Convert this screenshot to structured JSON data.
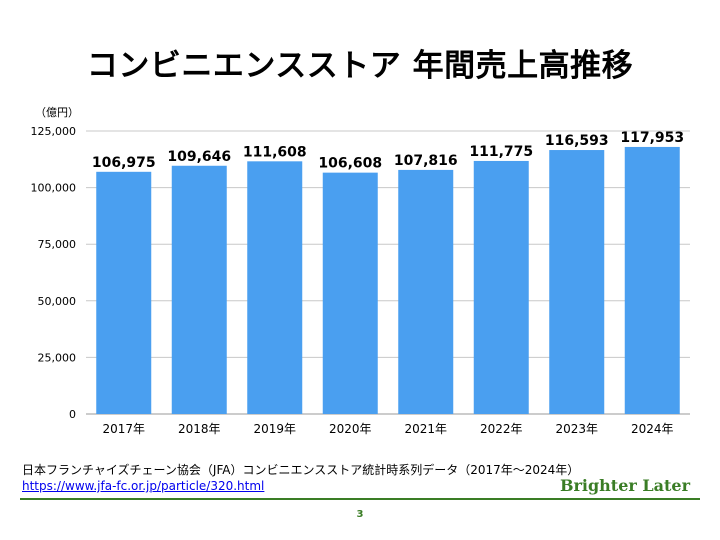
{
  "slide": {
    "title": "コンビニエンスストア 年間売上高推移",
    "source_text": "日本フランチャイズチェーン協会（JFA）コンビニエンスストア統計時系列データ（2017年〜2024年）",
    "source_url": "https://www.jfa-fc.or.jp/particle/320.html",
    "brand": "Brighter Later",
    "page_number": "3"
  },
  "colors": {
    "bar": "#4a9ff0",
    "accent": "#3a7d25",
    "link": "#0000ee",
    "grid": "#c8c8c8"
  },
  "chart_data": {
    "type": "bar",
    "title": "",
    "ylabel": "（億円）",
    "xlabel": "",
    "ylim": [
      0,
      125000
    ],
    "yticks": [
      0,
      25000,
      50000,
      75000,
      100000,
      125000
    ],
    "ytick_labels": [
      "0",
      "25,000",
      "50,000",
      "75,000",
      "100,000",
      "125,000"
    ],
    "grid": true,
    "categories": [
      "2017年",
      "2018年",
      "2019年",
      "2020年",
      "2021年",
      "2022年",
      "2023年",
      "2024年"
    ],
    "values": [
      106975,
      109646,
      111608,
      106608,
      107816,
      111775,
      116593,
      117953
    ],
    "value_labels": [
      "106,975",
      "109,646",
      "111,608",
      "106,608",
      "107,816",
      "111,775",
      "116,593",
      "117,953"
    ]
  }
}
